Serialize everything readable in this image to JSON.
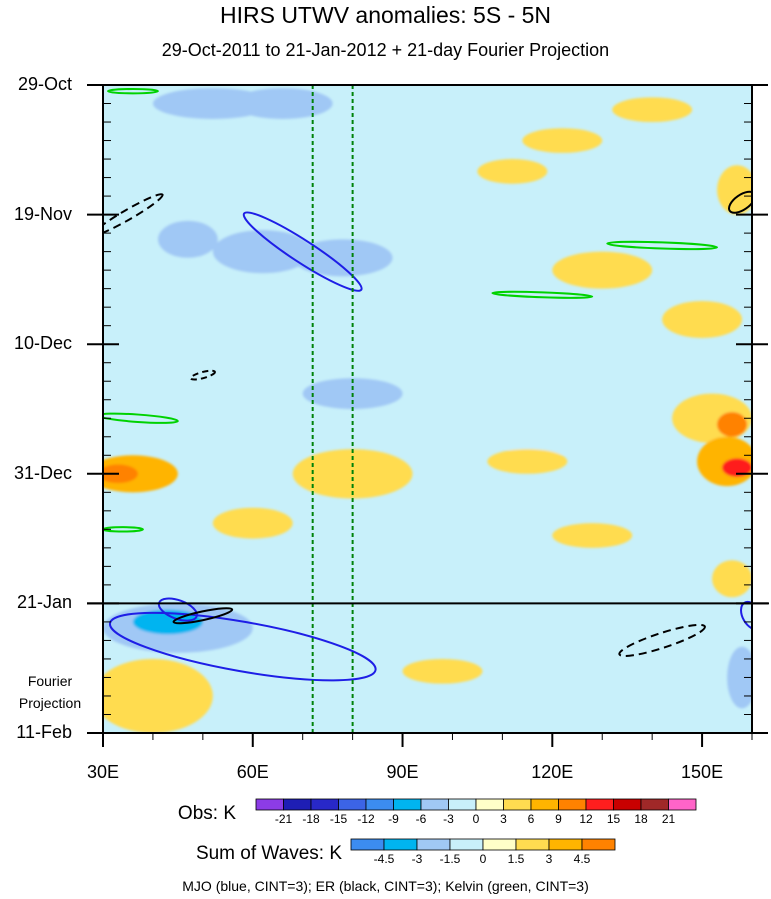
{
  "chart_data": {
    "type": "heatmap",
    "title": "HIRS UTWV anomalies: 5S - 5N",
    "subtitle": "29-Oct-2011 to 21-Jan-2012 + 21-day Fourier Projection",
    "x_axis": {
      "range": [
        30,
        160
      ],
      "units": "degrees East longitude",
      "ticks": [
        30,
        60,
        90,
        120,
        150
      ],
      "tick_labels": [
        "30E",
        "60E",
        "90E",
        "120E",
        "150E"
      ]
    },
    "y_axis": {
      "range_days": [
        0,
        105
      ],
      "direction": "time increases downward",
      "ticks_days": [
        0,
        21,
        42,
        63,
        84,
        105
      ],
      "tick_labels": [
        "29-Oct",
        "19-Nov",
        "10-Dec",
        "31-Dec",
        "21-Jan",
        "11-Feb"
      ],
      "minor_tick_step_days": 3
    },
    "projection_label": "Fourier Projection",
    "projection_start_day": 84,
    "reference_lines_lon": [
      72,
      80
    ],
    "obs_colorbar": {
      "title": "Obs: K",
      "levels": [
        -21,
        -18,
        -15,
        -12,
        -9,
        -6,
        -3,
        0,
        3,
        6,
        9,
        12,
        15,
        18,
        21
      ],
      "level_labels": [
        "-21",
        "-18",
        "-15",
        "-12",
        "-9",
        "-6",
        "-3",
        "0",
        "3",
        "6",
        "9",
        "12",
        "15",
        "18",
        "21"
      ],
      "colors": [
        "#8c3ce6",
        "#1e1eb4",
        "#2828c8",
        "#3c64e6",
        "#3c8cf0",
        "#00b4f0",
        "#a0c8f5",
        "#c8f0fa",
        "#ffffc8",
        "#ffdc50",
        "#ffb400",
        "#ff8200",
        "#ff1e1e",
        "#c80000",
        "#a02828",
        "#ff64c8"
      ]
    },
    "waves_colorbar": {
      "title": "Sum of Waves: K",
      "levels": [
        -4.5,
        -3,
        -1.5,
        0,
        1.5,
        3,
        4.5
      ],
      "level_labels": [
        "-4.5",
        "-3",
        "-1.5",
        "0",
        "1.5",
        "3",
        "4.5"
      ],
      "colors": [
        "#3c8cf0",
        "#00b4f0",
        "#a0c8f5",
        "#c8f0fa",
        "#ffffc8",
        "#ffdc50",
        "#ffb400",
        "#ff8200"
      ]
    },
    "wave_contours": {
      "legend": "MJO (blue, CINT=3); ER (black, CINT=3); Kelvin (green, CINT=3)",
      "colors": {
        "MJO": "#1e1ee6",
        "ER": "#000000",
        "Kelvin": "#00d200"
      }
    },
    "obs_field_blobs": [
      {
        "lon": 52,
        "day": 3,
        "rlon": 12,
        "rday": 2.5,
        "value": -6
      },
      {
        "lon": 66,
        "day": 3,
        "rlon": 10,
        "rday": 2.5,
        "value": -6
      },
      {
        "lon": 58,
        "day": 10,
        "rlon": 8,
        "rday": 2,
        "value": -3
      },
      {
        "lon": 36,
        "day": 23,
        "rlon": 4,
        "rday": 1.5,
        "value": -3
      },
      {
        "lon": 47,
        "day": 25,
        "rlon": 6,
        "rday": 3,
        "value": -6
      },
      {
        "lon": 62,
        "day": 27,
        "rlon": 10,
        "rday": 3.5,
        "value": -6
      },
      {
        "lon": 78,
        "day": 28,
        "rlon": 10,
        "rday": 3,
        "value": -6
      },
      {
        "lon": 64,
        "day": 24,
        "rlon": 16,
        "rday": 7,
        "value": -3
      },
      {
        "lon": 45,
        "day": 20,
        "rlon": 15,
        "rday": 7,
        "value": -3
      },
      {
        "lon": 95,
        "day": 21,
        "rlon": 12,
        "rday": 7,
        "value": -3
      },
      {
        "lon": 83,
        "day": 18,
        "rlon": 6,
        "rday": 4,
        "value": -3
      },
      {
        "lon": 122,
        "day": 9,
        "rlon": 8,
        "rday": 2,
        "value": 3
      },
      {
        "lon": 112,
        "day": 14,
        "rlon": 7,
        "rday": 2,
        "value": 3
      },
      {
        "lon": 140,
        "day": 4,
        "rlon": 8,
        "rday": 2,
        "value": 3
      },
      {
        "lon": 157,
        "day": 17,
        "rlon": 4,
        "rday": 4,
        "value": 3
      },
      {
        "lon": 130,
        "day": 30,
        "rlon": 10,
        "rday": 3,
        "value": 3
      },
      {
        "lon": 150,
        "day": 38,
        "rlon": 8,
        "rday": 3,
        "value": 3
      },
      {
        "lon": 100,
        "day": 34,
        "rlon": 8,
        "rday": 3,
        "value": -3
      },
      {
        "lon": 86,
        "day": 38,
        "rlon": 6,
        "rday": 2,
        "value": -3
      },
      {
        "lon": 80,
        "day": 50,
        "rlon": 10,
        "rday": 2.5,
        "value": -6
      },
      {
        "lon": 104,
        "day": 54,
        "rlon": 8,
        "rday": 2.5,
        "value": -3
      },
      {
        "lon": 118,
        "day": 58,
        "rlon": 8,
        "rday": 2,
        "value": -3
      },
      {
        "lon": 60,
        "day": 66,
        "rlon": 8,
        "rday": 2,
        "value": -3
      },
      {
        "lon": 36,
        "day": 63,
        "rlon": 9,
        "rday": 3,
        "value": 6
      },
      {
        "lon": 33,
        "day": 63,
        "rlon": 4,
        "rday": 1.5,
        "value": 9
      },
      {
        "lon": 80,
        "day": 63,
        "rlon": 12,
        "rday": 4,
        "value": 3
      },
      {
        "lon": 152,
        "day": 54,
        "rlon": 8,
        "rday": 4,
        "value": 3
      },
      {
        "lon": 155,
        "day": 61,
        "rlon": 6,
        "rday": 4,
        "value": 6
      },
      {
        "lon": 157,
        "day": 62,
        "rlon": 3,
        "rday": 1.5,
        "value": 12
      },
      {
        "lon": 156,
        "day": 55,
        "rlon": 3,
        "rday": 2,
        "value": 9
      },
      {
        "lon": 115,
        "day": 61,
        "rlon": 8,
        "rday": 2,
        "value": 3
      },
      {
        "lon": 95,
        "day": 76,
        "rlon": 10,
        "rday": 4,
        "value": -3
      },
      {
        "lon": 44,
        "day": 80,
        "rlon": 10,
        "rday": 4,
        "value": -3
      },
      {
        "lon": 128,
        "day": 73,
        "rlon": 8,
        "rday": 2,
        "value": 3
      },
      {
        "lon": 156,
        "day": 80,
        "rlon": 4,
        "rday": 3,
        "value": 3
      },
      {
        "lon": 60,
        "day": 71,
        "rlon": 8,
        "rday": 2.5,
        "value": 3
      }
    ],
    "projection_field_blobs": [
      {
        "lon": 45,
        "day": 88,
        "rlon": 15,
        "rday": 4,
        "value": -3
      },
      {
        "lon": 43,
        "day": 87,
        "rlon": 7,
        "rday": 2,
        "value": -4.5
      },
      {
        "lon": 100,
        "day": 88,
        "rlon": 25,
        "rday": 3,
        "value": -1.5
      },
      {
        "lon": 150,
        "day": 92,
        "rlon": 15,
        "rday": 5,
        "value": -1.5
      },
      {
        "lon": 158,
        "day": 96,
        "rlon": 3,
        "rday": 5,
        "value": -3
      },
      {
        "lon": 40,
        "day": 99,
        "rlon": 12,
        "rday": 6,
        "value": 1.5
      },
      {
        "lon": 98,
        "day": 95,
        "rlon": 8,
        "rday": 2,
        "value": 1.5
      }
    ]
  }
}
